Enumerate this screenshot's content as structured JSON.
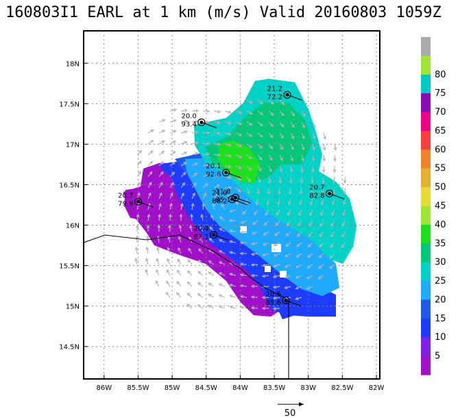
{
  "chart_data": {
    "type": "heatmap",
    "title": "160803I1 EARL at 1 km (m/s) Valid 20160803 1059Z",
    "x_tick_labels": [
      "86W",
      "85.5W",
      "85W",
      "84.5W",
      "84W",
      "83.5W",
      "83W",
      "82.5W",
      "82W"
    ],
    "x_ticks": [
      -86,
      -85.5,
      -85,
      -84.5,
      -84,
      -83.5,
      -83,
      -82.5,
      -82
    ],
    "y_tick_labels": [
      "14.5N",
      "15N",
      "15.5N",
      "16N",
      "16.5N",
      "17N",
      "17.5N",
      "18N"
    ],
    "y_ticks": [
      14.5,
      15,
      15.5,
      16,
      16.5,
      17,
      17.5,
      18
    ],
    "xlim": [
      -86.3,
      -81.95
    ],
    "ylim": [
      14.1,
      18.4
    ],
    "grid": true,
    "colorbar": {
      "levels": [
        5,
        10,
        15,
        20,
        25,
        30,
        35,
        40,
        45,
        50,
        55,
        60,
        65,
        70,
        75,
        80
      ],
      "labels": [
        "5",
        "10",
        "15",
        "20",
        "25",
        "30",
        "35",
        "40",
        "45",
        "50",
        "55",
        "60",
        "65",
        "70",
        "75",
        "80"
      ],
      "colors": [
        "#a010c8",
        "#8020e8",
        "#1e3cff",
        "#1e5ae8",
        "#1eaaff",
        "#00d2c8",
        "#00c878",
        "#1ee11e",
        "#a0e632",
        "#e6dc32",
        "#e6af2d",
        "#f08228",
        "#fa3c3c",
        "#f00082",
        "#8c0ab4",
        "#00c8c8",
        "#a0e632",
        "#aaaaaa"
      ]
    },
    "vector_scale_label": "50",
    "annotations": [
      {
        "lon": -84.57,
        "lat": 17.27,
        "value_top": "20.0",
        "value_bottom": "93.4"
      },
      {
        "lon": -83.31,
        "lat": 17.61,
        "value_top": "21.2",
        "value_bottom": "72.2"
      },
      {
        "lon": -84.21,
        "lat": 16.65,
        "value_top": "20.1",
        "value_bottom": "92.6"
      },
      {
        "lon": -82.69,
        "lat": 16.39,
        "value_top": "20.7",
        "value_bottom": "82.8"
      },
      {
        "lon": -85.5,
        "lat": 16.29,
        "value_top": "20.7",
        "value_bottom": "79.6"
      },
      {
        "lon": -84.07,
        "lat": 16.34,
        "value_top": "21.8",
        "value_bottom": "85.1"
      },
      {
        "lon": -84.12,
        "lat": 16.32,
        "value_top": "21.0",
        "value_bottom": "88.2"
      },
      {
        "lon": -84.39,
        "lat": 15.88,
        "value_top": "20.4",
        "value_bottom": "82.1"
      },
      {
        "lon": -83.33,
        "lat": 15.07,
        "value_top": "20.5",
        "value_bottom": "85.6"
      }
    ]
  }
}
